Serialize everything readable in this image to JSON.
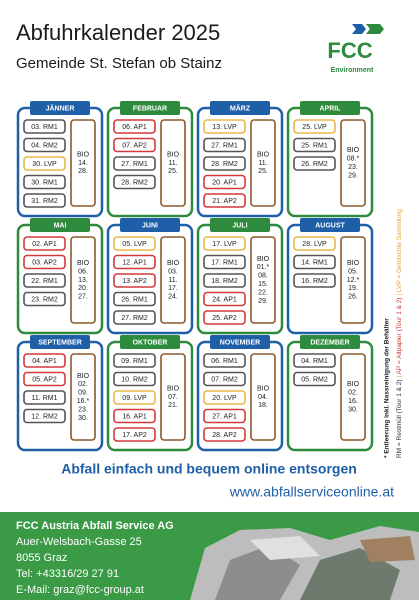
{
  "header": {
    "title": "Abfuhrkalender 2025",
    "subtitle": "Gemeinde St. Stefan ob Stainz",
    "logo": "FCC",
    "logo_sub": "Environment"
  },
  "bio_label": "BIO",
  "bio_color": "#8b5a2b",
  "months": [
    {
      "name": "JÄNNER",
      "color": "#1f5fa8",
      "entries": [
        {
          "label": "03. RM1",
          "color": "#555555"
        },
        {
          "label": "04. RM2",
          "color": "#555555"
        },
        {
          "label": "30. LVP",
          "color": "#e8b84a"
        },
        {
          "label": "30. RM1",
          "color": "#555555"
        },
        {
          "label": "31. RM2",
          "color": "#555555"
        }
      ],
      "bio": [
        "14.",
        "28."
      ]
    },
    {
      "name": "FEBRUAR",
      "color": "#2e8b3e",
      "entries": [
        {
          "label": "06. AP1",
          "color": "#d23a3a"
        },
        {
          "label": "07. AP2",
          "color": "#d23a3a"
        },
        {
          "label": "27. RM1",
          "color": "#555555"
        },
        {
          "label": "28. RM2",
          "color": "#555555"
        }
      ],
      "bio": [
        "11.",
        "25."
      ]
    },
    {
      "name": "MÄRZ",
      "color": "#1f5fa8",
      "entries": [
        {
          "label": "13. LVP",
          "color": "#e8b84a"
        },
        {
          "label": "27. RM1",
          "color": "#555555"
        },
        {
          "label": "28. RM2",
          "color": "#555555"
        },
        {
          "label": "20. AP1",
          "color": "#d23a3a"
        },
        {
          "label": "21. AP2",
          "color": "#d23a3a"
        }
      ],
      "bio": [
        "11.",
        "25."
      ]
    },
    {
      "name": "APRIL",
      "color": "#2e8b3e",
      "entries": [
        {
          "label": "25. LVP",
          "color": "#e8b84a"
        },
        {
          "label": "25. RM1",
          "color": "#555555"
        },
        {
          "label": "26. RM2",
          "color": "#555555"
        }
      ],
      "bio": [
        "08.*",
        "23.",
        "29."
      ]
    },
    {
      "name": "MAI",
      "color": "#2e8b3e",
      "entries": [
        {
          "label": "02. AP1",
          "color": "#d23a3a"
        },
        {
          "label": "03. AP2",
          "color": "#d23a3a"
        },
        {
          "label": "22. RM1",
          "color": "#555555"
        },
        {
          "label": "23. RM2",
          "color": "#555555"
        }
      ],
      "bio": [
        "06.",
        "13.",
        "20.",
        "27."
      ]
    },
    {
      "name": "JUNI",
      "color": "#1f5fa8",
      "entries": [
        {
          "label": "05. LVP",
          "color": "#e8b84a"
        },
        {
          "label": "12. AP1",
          "color": "#d23a3a"
        },
        {
          "label": "13. AP2",
          "color": "#d23a3a"
        },
        {
          "label": "26. RM1",
          "color": "#555555"
        },
        {
          "label": "27. RM2",
          "color": "#555555"
        }
      ],
      "bio": [
        "03.",
        "11.",
        "17.",
        "24."
      ]
    },
    {
      "name": "JULI",
      "color": "#2e8b3e",
      "entries": [
        {
          "label": "17. LVP",
          "color": "#e8b84a"
        },
        {
          "label": "17. RM1",
          "color": "#555555"
        },
        {
          "label": "18. RM2",
          "color": "#555555"
        },
        {
          "label": "24. AP1",
          "color": "#d23a3a"
        },
        {
          "label": "25. AP2",
          "color": "#d23a3a"
        }
      ],
      "bio": [
        "01.*",
        "08.",
        "15.",
        "22.",
        "29."
      ]
    },
    {
      "name": "AUGUST",
      "color": "#1f5fa8",
      "entries": [
        {
          "label": "28. LVP",
          "color": "#e8b84a"
        },
        {
          "label": "14. RM1",
          "color": "#555555"
        },
        {
          "label": "16. RM2",
          "color": "#555555"
        }
      ],
      "bio": [
        "05.",
        "12.*",
        "19.",
        "26."
      ]
    },
    {
      "name": "SEPTEMBER",
      "color": "#1f5fa8",
      "entries": [
        {
          "label": "04. AP1",
          "color": "#d23a3a"
        },
        {
          "label": "05. AP2",
          "color": "#d23a3a"
        },
        {
          "label": "11. RM1",
          "color": "#555555"
        },
        {
          "label": "12. RM2",
          "color": "#555555"
        }
      ],
      "bio": [
        "02.",
        "09.",
        "16.*",
        "23.",
        "30."
      ]
    },
    {
      "name": "OKTOBER",
      "color": "#2e8b3e",
      "entries": [
        {
          "label": "09. RM1",
          "color": "#555555"
        },
        {
          "label": "10. RM2",
          "color": "#555555"
        },
        {
          "label": "09. LVP",
          "color": "#e8b84a"
        },
        {
          "label": "16. AP1",
          "color": "#d23a3a"
        },
        {
          "label": "17. AP2",
          "color": "#d23a3a"
        }
      ],
      "bio": [
        "07.",
        "21."
      ]
    },
    {
      "name": "NOVEMBER",
      "color": "#1f5fa8",
      "entries": [
        {
          "label": "06. RM1",
          "color": "#555555"
        },
        {
          "label": "07. RM2",
          "color": "#555555"
        },
        {
          "label": "20. LVP",
          "color": "#e8b84a"
        },
        {
          "label": "27. AP1",
          "color": "#d23a3a"
        },
        {
          "label": "28. AP2",
          "color": "#d23a3a"
        }
      ],
      "bio": [
        "04.",
        "18."
      ]
    },
    {
      "name": "DEZEMBER",
      "color": "#2e8b3e",
      "entries": [
        {
          "label": "04. RM1",
          "color": "#555555"
        },
        {
          "label": "05. RM2",
          "color": "#555555"
        }
      ],
      "bio": [
        "02.",
        "16.",
        "30."
      ]
    }
  ],
  "legend": {
    "note": "* Entleerung inkl. Nassreinigung der Behälter",
    "rm": "RM = Restmüll (Tour 1 & 2)",
    "sep1": " | ",
    "ap": "AP = Altpapier (Tour 1 & 2)",
    "sep2": " | ",
    "lvp": "LVP = Gemischte Sammlung"
  },
  "online": {
    "slogan": "Abfall einfach und bequem online entsorgen",
    "url": "www.abfallserviceonline.at"
  },
  "footer": {
    "company": "FCC Austria Abfall Service AG",
    "street": "Auer-Welsbach-Gasse 25",
    "city": "8055 Graz",
    "phone": "Tel: +43316/29 27 91",
    "email": "E-Mail: graz@fcc-group.at"
  }
}
